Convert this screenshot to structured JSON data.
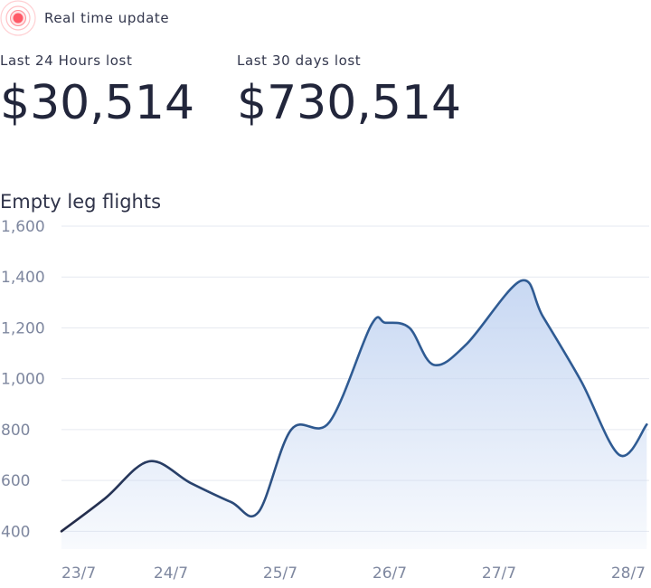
{
  "header": {
    "status_text": "Real time update",
    "status_icon": "live-pulse-icon",
    "accent_color": "#ff5a67"
  },
  "stats": [
    {
      "label": "Last 24 Hours lost",
      "value": "$30,514"
    },
    {
      "label": "Last 30 days lost",
      "value": "$730,514"
    }
  ],
  "chart_data": {
    "type": "area",
    "title": "Empty leg flights",
    "xlabel": "",
    "ylabel": "",
    "categories": [
      "23/7",
      "24/7",
      "25/7",
      "26/7",
      "27/7",
      "28/7"
    ],
    "x": [
      0,
      0.4,
      0.8,
      1.18,
      1.55,
      1.8,
      2.1,
      2.45,
      2.83,
      2.96,
      3.18,
      3.4,
      3.7,
      4.2,
      4.4,
      4.75,
      5.1,
      5.35
    ],
    "series": [
      {
        "values": [
          400,
          530,
          675,
          590,
          515,
          475,
          800,
          830,
          1210,
          1220,
          1200,
          1055,
          1135,
          1385,
          1245,
          990,
          700,
          820
        ],
        "line_color": "#2f5b93",
        "fill_color": "#c5d6f2"
      }
    ],
    "ylim": [
      330,
      1600
    ],
    "yticks": [
      400,
      600,
      800,
      1000,
      1200,
      1400,
      1600
    ],
    "ytick_labels": [
      "400",
      "600",
      "800",
      "1,000",
      "1,200",
      "1,400",
      "1,600"
    ],
    "grid": true,
    "legend": "none"
  }
}
